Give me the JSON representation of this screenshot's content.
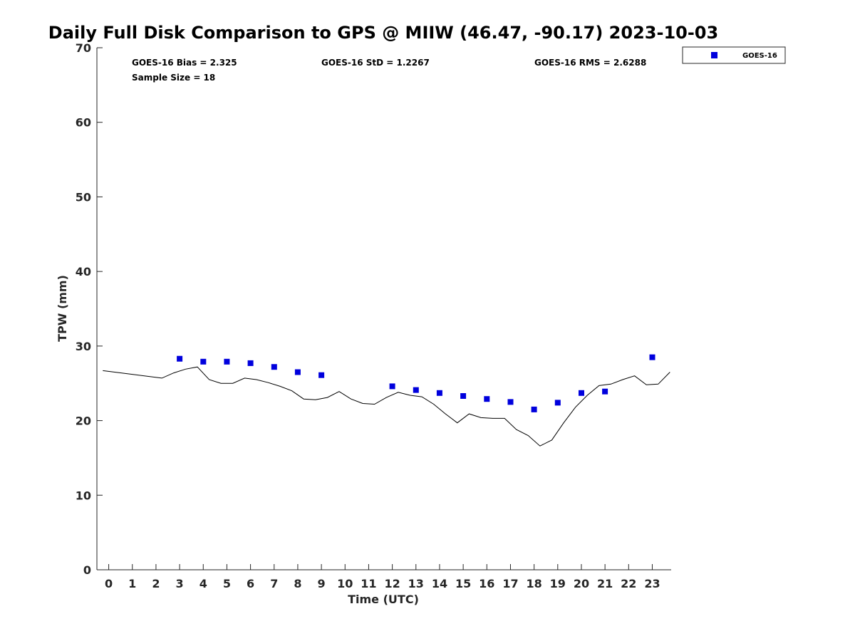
{
  "chart_data": {
    "type": "scatter",
    "title": "Daily Full Disk Comparison to GPS @ MIIW (46.47, -90.17) 2023-10-03",
    "xlabel": "Time (UTC)",
    "ylabel": "TPW (mm)",
    "xlim": [
      -0.5,
      23.8
    ],
    "ylim": [
      0,
      70
    ],
    "x_ticks": [
      "0",
      "1",
      "2",
      "3",
      "4",
      "5",
      "6",
      "7",
      "8",
      "9",
      "10",
      "11",
      "12",
      "13",
      "14",
      "15",
      "16",
      "17",
      "18",
      "19",
      "20",
      "21",
      "22",
      "23"
    ],
    "y_ticks": [
      "0",
      "10",
      "20",
      "30",
      "40",
      "50",
      "60",
      "70"
    ],
    "grid": false,
    "legend_position": "top-right",
    "stats": [
      "GOES-16 Bias = 2.325",
      "GOES-16 StD = 1.2267",
      "GOES-16 RMS = 2.6288",
      "Sample Size = 18"
    ],
    "series": [
      {
        "name": "GOES-16",
        "kind": "scatter",
        "marker": "square",
        "color": "#0000dd",
        "x": [
          3,
          4,
          5,
          6,
          7,
          8,
          9,
          12,
          13,
          14,
          15,
          16,
          17,
          18,
          19,
          20,
          21,
          23
        ],
        "y": [
          28.3,
          27.9,
          27.9,
          27.7,
          27.2,
          26.5,
          26.1,
          24.6,
          24.1,
          23.7,
          23.3,
          22.9,
          22.5,
          21.5,
          22.4,
          23.7,
          23.9,
          28.5
        ]
      },
      {
        "kind": "line",
        "color": "#000000",
        "x": [
          -0.25,
          2.25,
          2.75,
          3.25,
          3.75,
          4.25,
          4.75,
          5.25,
          5.75,
          6.25,
          6.75,
          7.25,
          7.75,
          8.25,
          8.75,
          9.25,
          9.75,
          10.25,
          10.75,
          11.25,
          11.75,
          12.25,
          12.75,
          13.25,
          13.75,
          14.25,
          14.75,
          15.25,
          15.75,
          16.25,
          16.75,
          17.25,
          17.75,
          18.25,
          18.75,
          19.25,
          19.75,
          20.25,
          20.75,
          21.25,
          21.75,
          22.25,
          22.75,
          23.25,
          23.75
        ],
        "y": [
          26.7,
          25.7,
          26.4,
          26.9,
          27.2,
          25.5,
          25.0,
          25.0,
          25.7,
          25.5,
          25.1,
          24.6,
          24.0,
          22.9,
          22.8,
          23.1,
          23.9,
          22.9,
          22.3,
          22.2,
          23.1,
          23.8,
          23.4,
          23.2,
          22.2,
          20.9,
          19.7,
          20.9,
          20.4,
          20.3,
          20.3,
          18.8,
          18.0,
          16.6,
          17.4,
          19.7,
          21.8,
          23.4,
          24.7,
          24.9,
          25.5,
          26.0,
          24.8,
          24.9,
          26.5
        ]
      }
    ]
  },
  "colors": {
    "scatter": "#0000dd",
    "line": "#000000",
    "axis": "#262626"
  }
}
